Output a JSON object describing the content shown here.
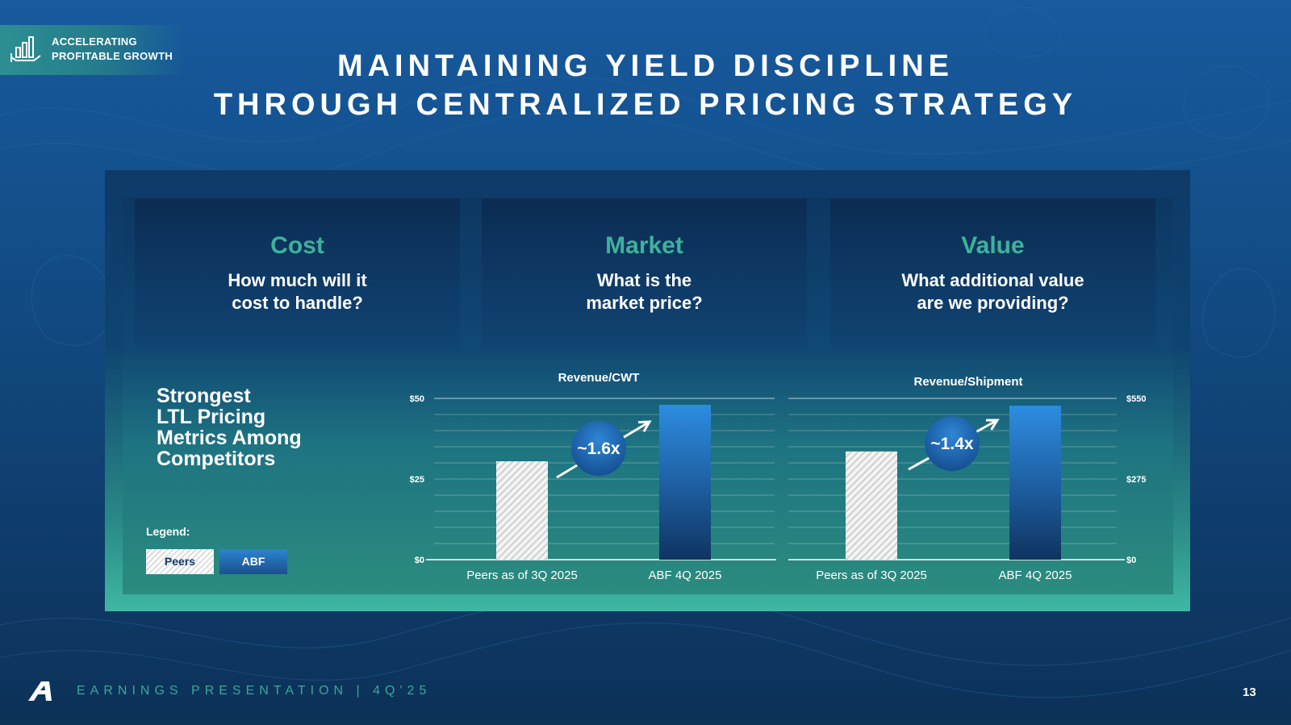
{
  "tag": {
    "line1": "ACCELERATING",
    "line2": "PROFITABLE GROWTH",
    "icon": "bar-chart-hand-icon"
  },
  "title": {
    "line1": "MAINTAINING YIELD DISCIPLINE",
    "line2": "THROUGH CENTRALIZED PRICING STRATEGY"
  },
  "cards": [
    {
      "title": "Cost",
      "line1": "How much will it",
      "line2": "cost to handle?"
    },
    {
      "title": "Market",
      "line1": "What is the",
      "line2": "market price?"
    },
    {
      "title": "Value",
      "line1": "What additional value",
      "line2": "are we providing?"
    }
  ],
  "highlight": {
    "line1": "Strongest",
    "line2": "LTL Pricing",
    "line3": "Metrics Among",
    "line4": "Competitors"
  },
  "legend": {
    "label": "Legend:",
    "peers": "Peers",
    "abf": "ABF"
  },
  "colors": {
    "accent": "#3db29c",
    "abf_bar_top": "#2d8de0",
    "abf_bar_bottom": "#0f3460",
    "peer_hatch": "#d9d9d9"
  },
  "chart_data": [
    {
      "type": "bar",
      "title": "Revenue/CWT",
      "categories": [
        "Peers as of 3Q 2025",
        "ABF 4Q 2025"
      ],
      "values": [
        30.5,
        48
      ],
      "ylim": [
        0,
        50
      ],
      "yticks": [
        0,
        25,
        50
      ],
      "ytick_labels": [
        "$0",
        "$25",
        "$50"
      ],
      "axis_side": "left",
      "grid": true,
      "annotation": "~1.6x"
    },
    {
      "type": "bar",
      "title": "Revenue/Shipment",
      "categories": [
        "Peers as of 3Q 2025",
        "ABF 4Q 2025"
      ],
      "values": [
        369,
        525
      ],
      "ylim": [
        0,
        550
      ],
      "yticks": [
        0,
        275,
        550
      ],
      "ytick_labels": [
        "$0",
        "$275",
        "$550"
      ],
      "axis_side": "right",
      "grid": true,
      "annotation": "~1.4x"
    }
  ],
  "footer": {
    "text": "EARNINGS PRESENTATION   |   4Q'25",
    "page": "13"
  }
}
